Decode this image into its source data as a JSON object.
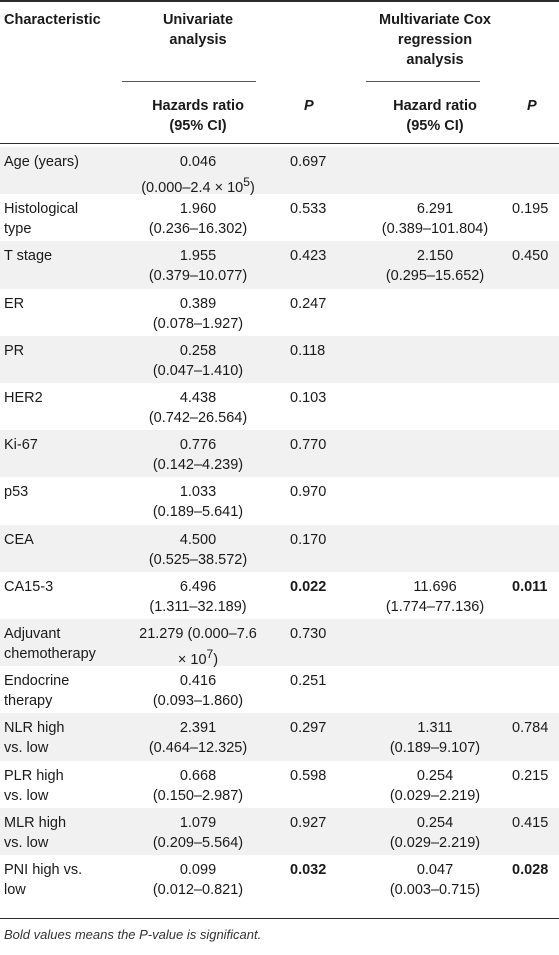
{
  "header": {
    "characteristic": "Characteristic",
    "univariate": "Univariate analysis",
    "multivariate": "Multivariate Cox regression analysis",
    "hr_uni": "Hazards ratio (95% CI)",
    "p_uni": "P",
    "hr_multi": "Hazard ratio (95% CI)",
    "p_multi": "P"
  },
  "rows": [
    {
      "char": [
        "Age (years)"
      ],
      "uni_hr": [
        "0.046"
      ],
      "uni_ci_html": "(0.000–2.4 × 10<sup>5</sup>)",
      "uni_p": "0.697",
      "multi_hr": [],
      "multi_p": "",
      "uni_p_bold": false,
      "multi_p_bold": false
    },
    {
      "char": [
        "Histological",
        "type"
      ],
      "uni_hr": [
        "1.960",
        "(0.236–16.302)"
      ],
      "uni_p": "0.533",
      "multi_hr": [
        "6.291",
        "(0.389–101.804)"
      ],
      "multi_p": "0.195",
      "uni_p_bold": false,
      "multi_p_bold": false
    },
    {
      "char": [
        "T stage"
      ],
      "uni_hr": [
        "1.955",
        "(0.379–10.077)"
      ],
      "uni_p": "0.423",
      "multi_hr": [
        "2.150",
        "(0.295–15.652)"
      ],
      "multi_p": "0.450",
      "uni_p_bold": false,
      "multi_p_bold": false
    },
    {
      "char": [
        "ER"
      ],
      "uni_hr": [
        "0.389",
        "(0.078–1.927)"
      ],
      "uni_p": "0.247",
      "multi_hr": [],
      "multi_p": "",
      "uni_p_bold": false,
      "multi_p_bold": false
    },
    {
      "char": [
        "PR"
      ],
      "uni_hr": [
        "0.258",
        "(0.047–1.410)"
      ],
      "uni_p": "0.118",
      "multi_hr": [],
      "multi_p": "",
      "uni_p_bold": false,
      "multi_p_bold": false
    },
    {
      "char": [
        "HER2"
      ],
      "uni_hr": [
        "4.438",
        "(0.742–26.564)"
      ],
      "uni_p": "0.103",
      "multi_hr": [],
      "multi_p": "",
      "uni_p_bold": false,
      "multi_p_bold": false
    },
    {
      "char": [
        "Ki-67"
      ],
      "uni_hr": [
        "0.776",
        "(0.142–4.239)"
      ],
      "uni_p": "0.770",
      "multi_hr": [],
      "multi_p": "",
      "uni_p_bold": false,
      "multi_p_bold": false
    },
    {
      "char": [
        "p53"
      ],
      "uni_hr": [
        "1.033",
        "(0.189–5.641)"
      ],
      "uni_p": "0.970",
      "multi_hr": [],
      "multi_p": "",
      "uni_p_bold": false,
      "multi_p_bold": false
    },
    {
      "char": [
        "CEA"
      ],
      "uni_hr": [
        "4.500",
        "(0.525–38.572)"
      ],
      "uni_p": "0.170",
      "multi_hr": [],
      "multi_p": "",
      "uni_p_bold": false,
      "multi_p_bold": false
    },
    {
      "char": [
        "CA15-3"
      ],
      "uni_hr": [
        "6.496",
        "(1.311–32.189)"
      ],
      "uni_p": "0.022",
      "multi_hr": [
        "11.696",
        "(1.774–77.136)"
      ],
      "multi_p": "0.011",
      "uni_p_bold": true,
      "multi_p_bold": true
    },
    {
      "char": [
        "Adjuvant",
        "chemotherapy"
      ],
      "uni_hr": [
        "21.279 (0.000–7.6"
      ],
      "uni_ci_html": "× 10<sup>7</sup>)",
      "uni_p": "0.730",
      "multi_hr": [],
      "multi_p": "",
      "uni_p_bold": false,
      "multi_p_bold": false
    },
    {
      "char": [
        "Endocrine",
        "therapy"
      ],
      "uni_hr": [
        "0.416",
        "(0.093–1.860)"
      ],
      "uni_p": "0.251",
      "multi_hr": [],
      "multi_p": "",
      "uni_p_bold": false,
      "multi_p_bold": false
    },
    {
      "char": [
        "NLR high",
        "vs. low"
      ],
      "uni_hr": [
        "2.391",
        "(0.464–12.325)"
      ],
      "uni_p": "0.297",
      "multi_hr": [
        "1.311",
        "(0.189–9.107)"
      ],
      "multi_p": "0.784",
      "uni_p_bold": false,
      "multi_p_bold": false
    },
    {
      "char": [
        "PLR high",
        "vs. low"
      ],
      "uni_hr": [
        "0.668",
        "(0.150–2.987)"
      ],
      "uni_p": "0.598",
      "multi_hr": [
        "0.254",
        "(0.029–2.219)"
      ],
      "multi_p": "0.215",
      "uni_p_bold": false,
      "multi_p_bold": false
    },
    {
      "char": [
        "MLR high",
        "vs. low"
      ],
      "uni_hr": [
        "1.079",
        "(0.209–5.564)"
      ],
      "uni_p": "0.927",
      "multi_hr": [
        "0.254",
        "(0.029–2.219)"
      ],
      "multi_p": "0.415",
      "uni_p_bold": false,
      "multi_p_bold": false
    },
    {
      "char": [
        "PNI high vs.",
        "low"
      ],
      "uni_hr": [
        "0.099",
        "(0.012–0.821)"
      ],
      "uni_p": "0.032",
      "multi_hr": [
        "0.047",
        "(0.003–0.715)"
      ],
      "multi_p": "0.028",
      "uni_p_bold": true,
      "multi_p_bold": true
    }
  ],
  "footnote": "Bold values means the P-value is significant.",
  "colors": {
    "shaded_row": "#f1f1f2",
    "rule": "#2b2b2b"
  }
}
